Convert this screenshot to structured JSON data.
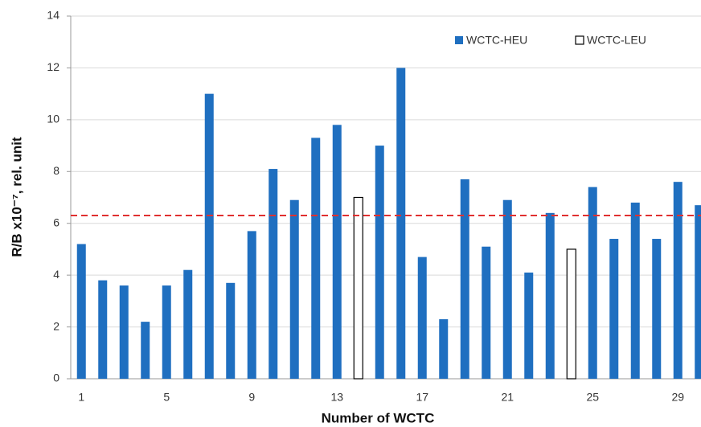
{
  "chart_data": {
    "type": "bar",
    "x_label": "Number of WCTC",
    "y_label": "R/B x10⁻⁷, rel. unit",
    "categories": [
      "1",
      null,
      null,
      null,
      "5",
      null,
      null,
      null,
      "9",
      null,
      null,
      null,
      "13",
      null,
      null,
      null,
      "17",
      null,
      null,
      null,
      "21",
      null,
      null,
      null,
      "25",
      null,
      null,
      null,
      "29",
      null
    ],
    "series": [
      {
        "name": "WCTC-HEU",
        "color": "#1f6fc0",
        "values": [
          5.2,
          3.8,
          3.6,
          2.2,
          3.6,
          4.2,
          11.0,
          3.7,
          5.7,
          8.1,
          6.9,
          9.3,
          9.8,
          null,
          9.0,
          12.0,
          4.7,
          2.3,
          7.7,
          5.1,
          6.9,
          4.1,
          6.4,
          null,
          7.4,
          5.4,
          6.8,
          5.4,
          7.6,
          6.7
        ]
      },
      {
        "name": "WCTC-LEU",
        "color": "#ffffff",
        "values": [
          null,
          null,
          null,
          null,
          null,
          null,
          null,
          null,
          null,
          null,
          null,
          null,
          null,
          7.0,
          null,
          null,
          null,
          null,
          null,
          null,
          null,
          null,
          null,
          5.0,
          null,
          null,
          null,
          null,
          null,
          null
        ]
      }
    ],
    "reference_line": {
      "value": 6.3,
      "color": "#e03030"
    },
    "ylim": [
      0,
      14
    ],
    "yticks": [
      0,
      2,
      4,
      6,
      8,
      10,
      12,
      14
    ],
    "grid": true,
    "legend": "top-right"
  }
}
